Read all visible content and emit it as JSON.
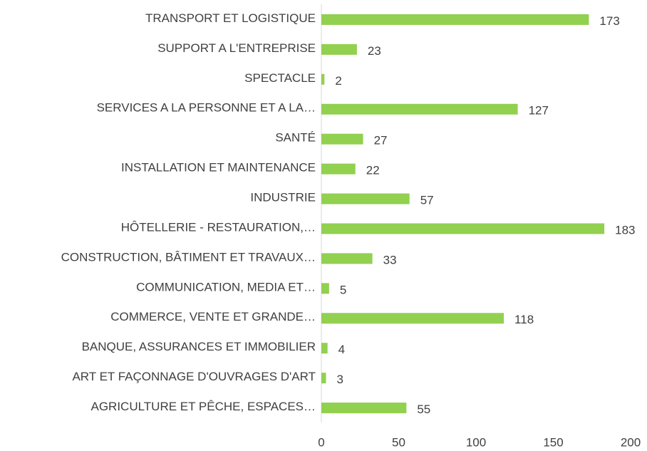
{
  "chart_data": {
    "type": "hbar",
    "categories": [
      "TRANSPORT ET LOGISTIQUE",
      "SUPPORT A L'ENTREPRISE",
      "SPECTACLE",
      "SERVICES A LA PERSONNE ET A LA…",
      "SANTÉ",
      "INSTALLATION ET MAINTENANCE",
      "INDUSTRIE",
      "HÔTELLERIE - RESTAURATION,…",
      "CONSTRUCTION, BÂTIMENT ET TRAVAUX…",
      "COMMUNICATION, MEDIA ET…",
      "COMMERCE, VENTE ET GRANDE…",
      "BANQUE, ASSURANCES ET IMMOBILIER",
      "ART ET FAÇONNAGE D'OUVRAGES D'ART",
      "AGRICULTURE ET PÊCHE, ESPACES…"
    ],
    "values": [
      173,
      23,
      2,
      127,
      27,
      22,
      57,
      183,
      33,
      5,
      118,
      4,
      3,
      55
    ],
    "color": "#92d050",
    "xlim": [
      0,
      200
    ],
    "xticks": [
      0,
      50,
      100,
      150,
      200
    ],
    "grid": false
  }
}
